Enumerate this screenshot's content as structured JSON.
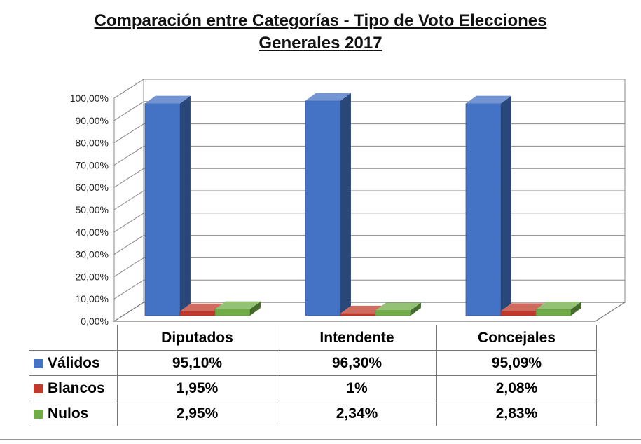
{
  "chart_data": {
    "type": "bar",
    "title": "Comparación entre Categorías - Tipo de Voto Elecciones Generales 2017",
    "title_lines": [
      "Comparación entre Categorías - Tipo de Voto Elecciones",
      "Generales 2017"
    ],
    "categories": [
      "Diputados",
      "Intendente",
      "Concejales"
    ],
    "series": [
      {
        "name": "Válidos",
        "color": "#4472C4",
        "values": [
          95.1,
          96.3,
          95.09
        ],
        "labels": [
          "95,10%",
          "96,30%",
          "95,09%"
        ]
      },
      {
        "name": "Blancos",
        "color": "#C0392B",
        "values": [
          1.95,
          1.0,
          2.08
        ],
        "labels": [
          "1,95%",
          "1%",
          "2,08%"
        ]
      },
      {
        "name": "Nulos",
        "color": "#70AD47",
        "values": [
          2.95,
          2.34,
          2.83
        ],
        "labels": [
          "2,95%",
          "2,34%",
          "2,83%"
        ]
      }
    ],
    "ylim": [
      0,
      100
    ],
    "y_ticks": [
      "0,00%",
      "10,00%",
      "20,00%",
      "30,00%",
      "40,00%",
      "50,00%",
      "60,00%",
      "70,00%",
      "80,00%",
      "90,00%",
      "100,00%"
    ],
    "grid": true,
    "style": "3d-column",
    "legend": "data-table"
  }
}
